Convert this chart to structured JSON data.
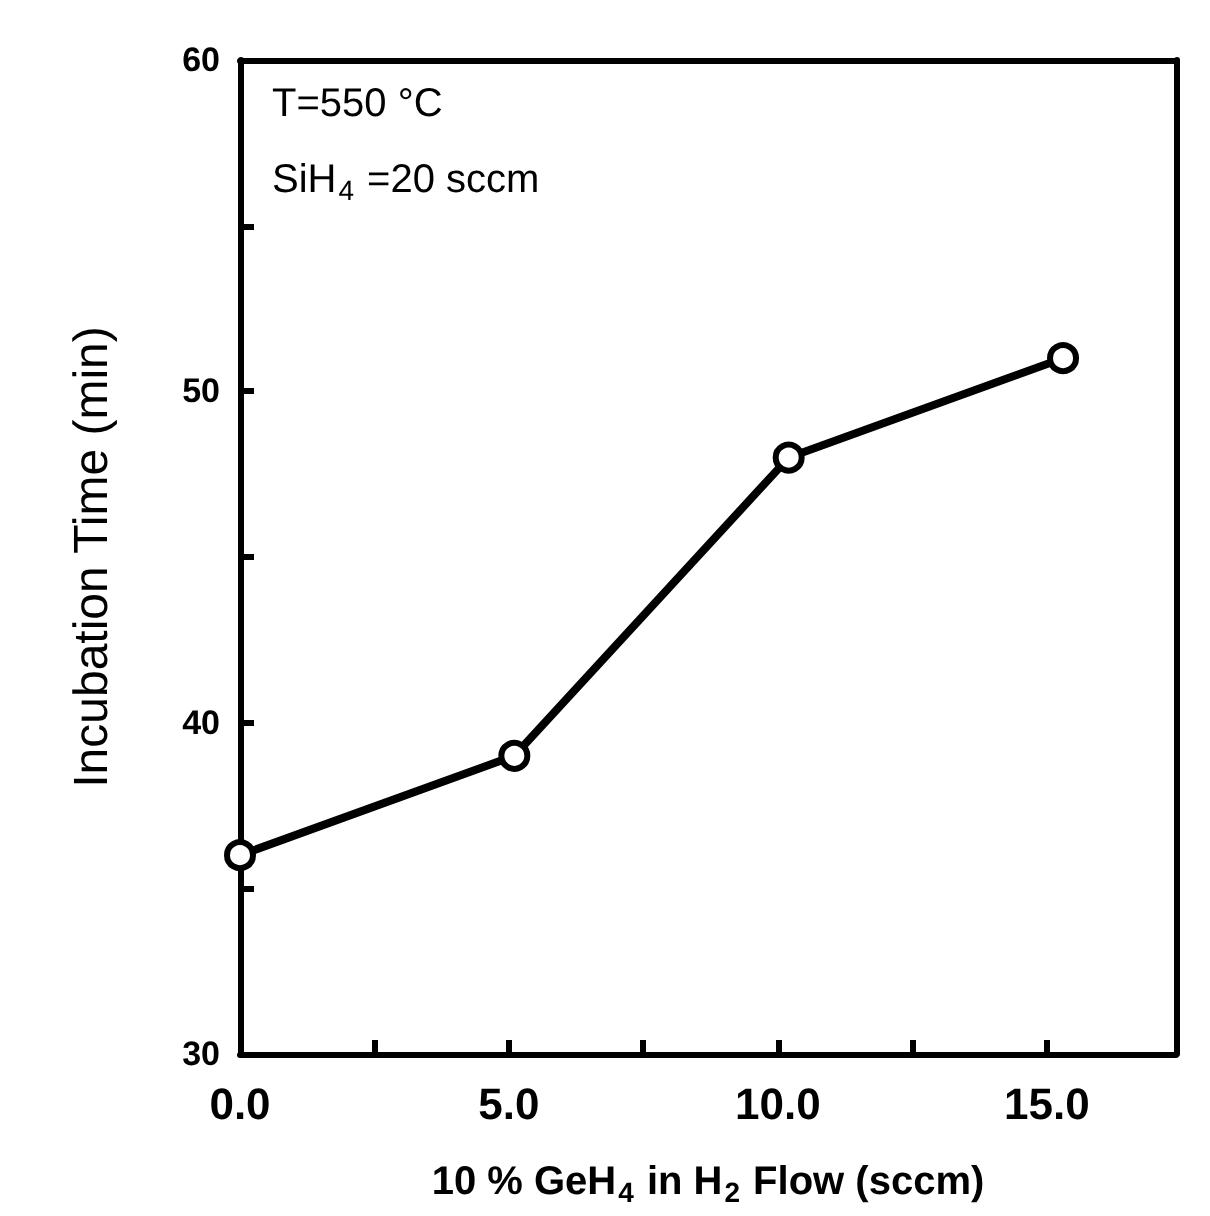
{
  "chart_data": {
    "type": "line",
    "xlabel": "10 % GeH$_{4}$ in H$_{2}$ Flow (sccm)",
    "ylabel": "Incubation Time (min)",
    "annotations": [
      "T=550 °C",
      "SiH$_{4}$ =20 sccm"
    ],
    "x": [
      0,
      5.1,
      10.2,
      15.3
    ],
    "series": [
      {
        "color": "#000000",
        "values": [
          36,
          39,
          48,
          51
        ]
      }
    ],
    "xlim": [
      0,
      17.4
    ],
    "xticks": [
      {
        "value": 0,
        "label": "0.0"
      },
      {
        "value": 2.5,
        "label": null
      },
      {
        "value": 5,
        "label": "5.0"
      },
      {
        "value": 7.5,
        "label": null
      },
      {
        "value": 10,
        "label": "10.0"
      },
      {
        "value": 12.5,
        "label": null
      },
      {
        "value": 15,
        "label": "15.0"
      }
    ],
    "ylim": [
      30,
      60
    ],
    "yticks": [
      30,
      {
        "value": 35,
        "label": null
      },
      40,
      {
        "value": 45,
        "label": null
      },
      50,
      {
        "value": 55,
        "label": null
      },
      60
    ],
    "grid": false,
    "marker": "circle",
    "line_style": "solid"
  }
}
